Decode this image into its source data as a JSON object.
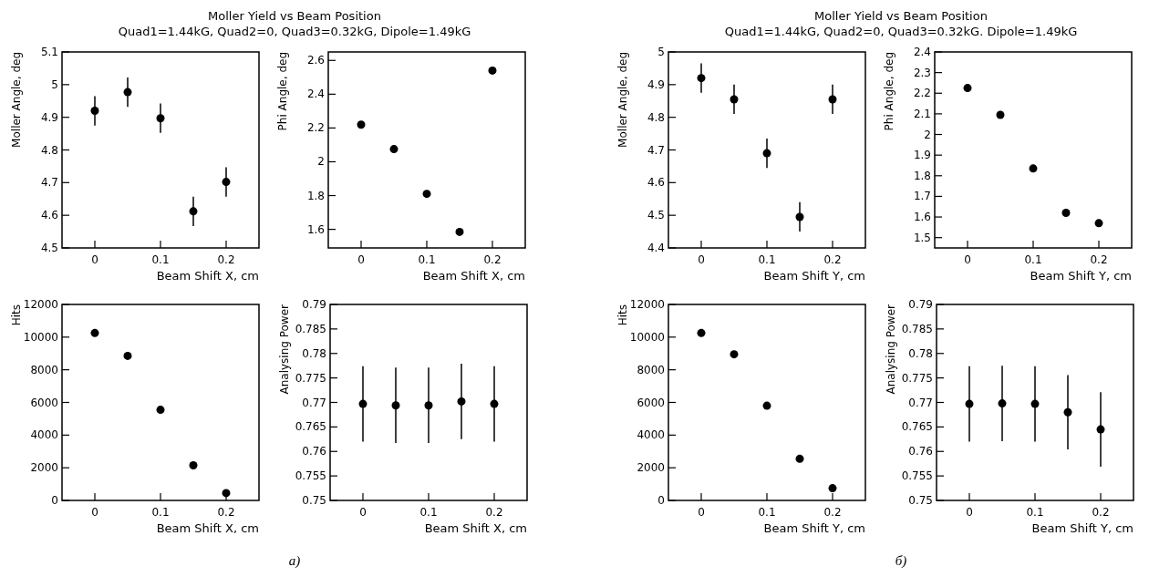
{
  "chart_data": [
    {
      "type": "scatter",
      "title": "Moller Yield vs Beam Position",
      "subtitle": "Quad1=1.44kG, Quad2=0, Quad3=0.32kG, Dipole=1.49kG",
      "annotations": [
        "a)"
      ],
      "xlabel": "Beam Shift X, cm",
      "ylabel": "Moller Angle, deg",
      "x": [
        0,
        0.05,
        0.1,
        0.15,
        0.2
      ],
      "values": [
        4.92,
        4.977,
        4.897,
        4.612,
        4.702
      ],
      "errors": [
        0.045,
        0.045,
        0.045,
        0.045,
        0.045
      ],
      "color": "#000000",
      "marker": "circle",
      "xlim": [
        -0.05,
        0.25
      ],
      "xticks": [
        0,
        0.1,
        0.2
      ],
      "ylim": [
        4.5,
        5.1
      ],
      "yticks": [
        4.5,
        4.6,
        4.7,
        4.8,
        4.9,
        5,
        5.1
      ]
    },
    {
      "type": "scatter",
      "xlabel": "Beam Shift X, cm",
      "ylabel": "Phi Angle, deg",
      "x": [
        0,
        0.05,
        0.1,
        0.15,
        0.2
      ],
      "values": [
        2.22,
        2.075,
        1.81,
        1.585,
        2.54
      ],
      "color": "#000000",
      "marker": "circle",
      "xlim": [
        -0.05,
        0.25
      ],
      "xticks": [
        0,
        0.1,
        0.2
      ],
      "ylim": [
        1.49,
        2.65
      ],
      "yticks": [
        1.6,
        1.8,
        2,
        2.2,
        2.4,
        2.6
      ]
    },
    {
      "type": "scatter",
      "xlabel": "Beam Shift X, cm",
      "ylabel": "Hits",
      "x": [
        0,
        0.05,
        0.1,
        0.15,
        0.2
      ],
      "values": [
        10250,
        8850,
        5550,
        2150,
        450
      ],
      "color": "#000000",
      "marker": "circle",
      "xlim": [
        -0.05,
        0.25
      ],
      "xticks": [
        0,
        0.1,
        0.2
      ],
      "ylim": [
        0,
        12000
      ],
      "yticks": [
        0,
        2000,
        4000,
        6000,
        8000,
        10000,
        12000
      ]
    },
    {
      "type": "scatter",
      "xlabel": "Beam Shift X, cm",
      "ylabel": "Analysing Power",
      "x": [
        0,
        0.05,
        0.1,
        0.15,
        0.2
      ],
      "values": [
        0.7697,
        0.7694,
        0.7694,
        0.7702,
        0.7697
      ],
      "errors": [
        0.0077,
        0.0077,
        0.0077,
        0.0077,
        0.0077
      ],
      "color": "#000000",
      "marker": "circle",
      "xlim": [
        -0.05,
        0.25
      ],
      "xticks": [
        0,
        0.1,
        0.2
      ],
      "ylim": [
        0.75,
        0.79
      ],
      "yticks": [
        0.75,
        0.755,
        0.76,
        0.765,
        0.77,
        0.775,
        0.78,
        0.785,
        0.79
      ]
    },
    {
      "type": "scatter",
      "title": "Moller Yield vs Beam Position",
      "subtitle": "Quad1=1.44kG, Quad2=0, Quad3=0.32kG. Dipole=1.49kG",
      "annotations": [
        "б)"
      ],
      "xlabel": "Beam Shift Y, cm",
      "ylabel": "Moller Angle, deg",
      "x": [
        0,
        0.05,
        0.1,
        0.15,
        0.2
      ],
      "values": [
        4.92,
        4.855,
        4.69,
        4.495,
        4.855
      ],
      "errors": [
        0.045,
        0.045,
        0.045,
        0.045,
        0.045
      ],
      "color": "#000000",
      "marker": "circle",
      "xlim": [
        -0.05,
        0.25
      ],
      "xticks": [
        0,
        0.1,
        0.2
      ],
      "ylim": [
        4.4,
        5
      ],
      "yticks": [
        4.4,
        4.5,
        4.6,
        4.7,
        4.8,
        4.9,
        5
      ]
    },
    {
      "type": "scatter",
      "xlabel": "Beam Shift Y, cm",
      "ylabel": "Phi Angle, deg",
      "x": [
        0,
        0.05,
        0.1,
        0.15,
        0.2
      ],
      "values": [
        2.225,
        2.095,
        1.835,
        1.62,
        1.57
      ],
      "color": "#000000",
      "marker": "circle",
      "xlim": [
        -0.05,
        0.25
      ],
      "xticks": [
        0,
        0.1,
        0.2
      ],
      "ylim": [
        1.45,
        2.4
      ],
      "yticks": [
        1.5,
        1.6,
        1.7,
        1.8,
        1.9,
        2,
        2.1,
        2.2,
        2.3,
        2.4
      ]
    },
    {
      "type": "scatter",
      "xlabel": "Beam Shift Y, cm",
      "ylabel": "Hits",
      "x": [
        0,
        0.05,
        0.1,
        0.15,
        0.2
      ],
      "values": [
        10250,
        8950,
        5800,
        2550,
        750
      ],
      "color": "#000000",
      "marker": "circle",
      "xlim": [
        -0.05,
        0.25
      ],
      "xticks": [
        0,
        0.1,
        0.2
      ],
      "ylim": [
        0,
        12000
      ],
      "yticks": [
        0,
        2000,
        4000,
        6000,
        8000,
        10000,
        12000
      ]
    },
    {
      "type": "scatter",
      "xlabel": "Beam Shift Y, cm",
      "ylabel": "Analysing Power",
      "x": [
        0,
        0.05,
        0.1,
        0.15,
        0.2
      ],
      "values": [
        0.7697,
        0.7698,
        0.7697,
        0.768,
        0.7645
      ],
      "errors": [
        0.0077,
        0.0077,
        0.0077,
        0.0076,
        0.0076
      ],
      "color": "#000000",
      "marker": "circle",
      "xlim": [
        -0.05,
        0.25
      ],
      "xticks": [
        0,
        0.1,
        0.2
      ],
      "ylim": [
        0.75,
        0.79
      ],
      "yticks": [
        0.75,
        0.755,
        0.76,
        0.765,
        0.77,
        0.775,
        0.78,
        0.785,
        0.79
      ]
    }
  ]
}
